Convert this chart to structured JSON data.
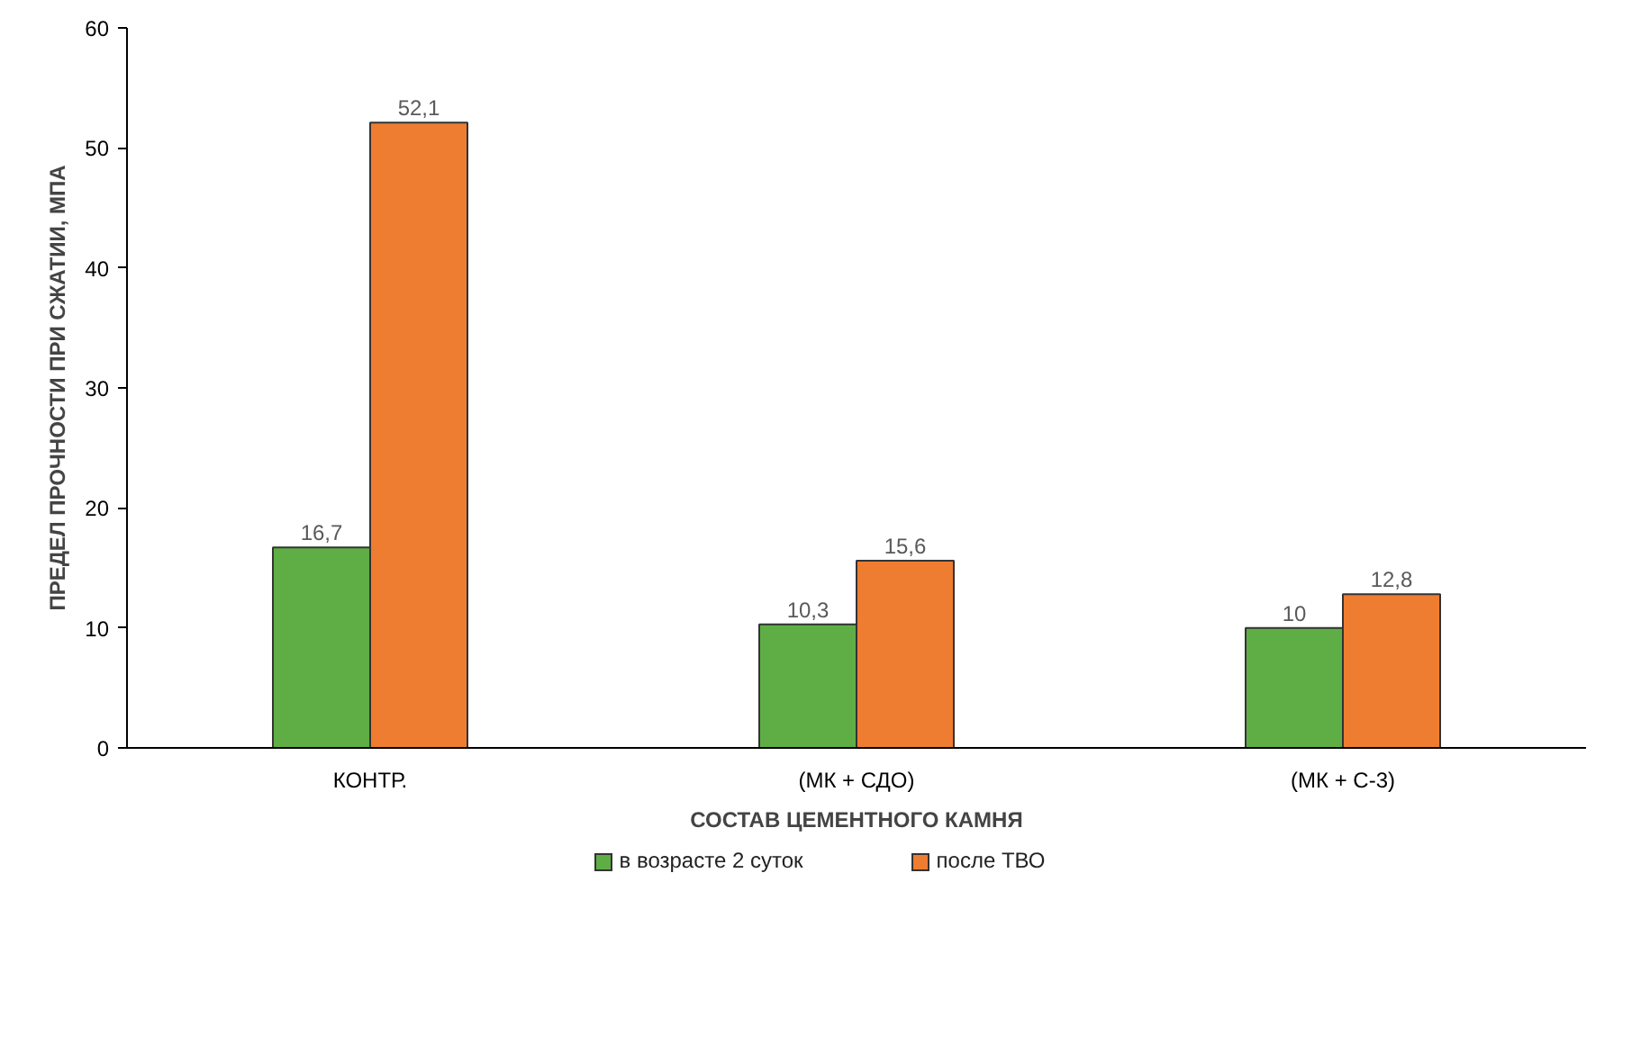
{
  "chart_data": {
    "type": "bar",
    "xlabel": "СОСТАВ ЦЕМЕНТНОГО КАМНЯ",
    "ylabel": "ПРЕДЕЛ ПРОЧНОСТИ ПРИ СЖАТИИ, МПА",
    "categories": [
      "КОНТР.",
      "(МК + СДО)",
      "(МК + С-3)"
    ],
    "series": [
      {
        "name": "в возрасте 2 суток",
        "color": "#5fae45",
        "values": [
          16.7,
          10.3,
          10
        ],
        "value_labels": [
          "16,7",
          "10,3",
          "10"
        ]
      },
      {
        "name": "после ТВО",
        "color": "#ee7d31",
        "values": [
          52.1,
          15.6,
          12.8
        ],
        "value_labels": [
          "52,1",
          "15,6",
          "12,8"
        ]
      }
    ],
    "ylim": [
      0,
      60
    ],
    "yticks": [
      0,
      10,
      20,
      30,
      40,
      50,
      60
    ],
    "grid": false,
    "legend": "bottom"
  }
}
